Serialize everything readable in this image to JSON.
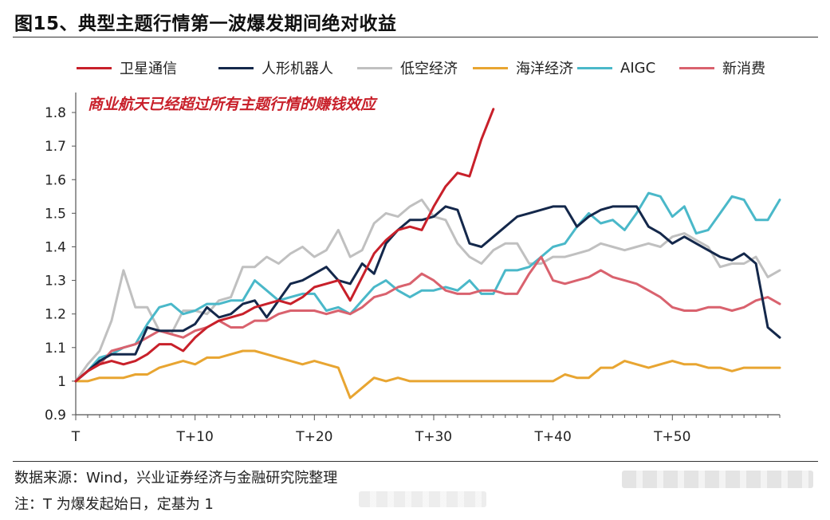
{
  "title": "图15、典型主题行情第一波爆发期间绝对收益",
  "source": "数据来源：Wind，兴业证券经济与金融研究院整理",
  "note": "注：T 为爆发起始日，定基为 1",
  "chart_data": {
    "type": "line",
    "title": "图15、典型主题行情第一波爆发期间绝对收益",
    "annotation": "商业航天已经超过所有主题行情的赚钱效应",
    "annotation_color": "#c8202a",
    "x_ticks": [
      "T",
      "T+10",
      "T+20",
      "T+30",
      "T+40",
      "T+50"
    ],
    "x_tick_positions": [
      0,
      10,
      20,
      30,
      40,
      50
    ],
    "xlim": [
      0,
      59
    ],
    "ylim": [
      0.9,
      1.85
    ],
    "y_ticks": [
      "0.9",
      "1",
      "1.1",
      "1.2",
      "1.3",
      "1.4",
      "1.5",
      "1.6",
      "1.7",
      "1.8"
    ],
    "y_tick_values": [
      0.9,
      1.0,
      1.1,
      1.2,
      1.3,
      1.4,
      1.5,
      1.6,
      1.7,
      1.8
    ],
    "legend_position": "top",
    "grid": false,
    "series": [
      {
        "name": "卫星通信",
        "color": "#c8202a",
        "values": [
          1.0,
          1.03,
          1.05,
          1.06,
          1.05,
          1.06,
          1.08,
          1.11,
          1.11,
          1.09,
          1.13,
          1.16,
          1.18,
          1.19,
          1.2,
          1.22,
          1.23,
          1.24,
          1.23,
          1.25,
          1.28,
          1.29,
          1.3,
          1.24,
          1.31,
          1.38,
          1.42,
          1.45,
          1.46,
          1.45,
          1.52,
          1.58,
          1.62,
          1.61,
          1.72,
          1.81
        ]
      },
      {
        "name": "人形机器人",
        "color": "#14284b",
        "values": [
          1.0,
          1.03,
          1.06,
          1.08,
          1.08,
          1.08,
          1.16,
          1.15,
          1.15,
          1.15,
          1.17,
          1.22,
          1.19,
          1.2,
          1.23,
          1.24,
          1.19,
          1.24,
          1.29,
          1.3,
          1.32,
          1.34,
          1.3,
          1.29,
          1.35,
          1.32,
          1.41,
          1.45,
          1.48,
          1.48,
          1.49,
          1.52,
          1.51,
          1.41,
          1.4,
          1.43,
          1.46,
          1.49,
          1.5,
          1.51,
          1.52,
          1.52,
          1.46,
          1.49,
          1.51,
          1.52,
          1.52,
          1.52,
          1.46,
          1.44,
          1.41,
          1.43,
          1.41,
          1.39,
          1.37,
          1.36,
          1.38,
          1.35,
          1.16,
          1.13
        ]
      },
      {
        "name": "低空经济",
        "color": "#c0c0c0",
        "values": [
          1.0,
          1.05,
          1.09,
          1.18,
          1.33,
          1.22,
          1.22,
          1.15,
          1.14,
          1.21,
          1.21,
          1.2,
          1.24,
          1.25,
          1.34,
          1.34,
          1.37,
          1.35,
          1.38,
          1.4,
          1.37,
          1.39,
          1.45,
          1.37,
          1.39,
          1.47,
          1.5,
          1.49,
          1.52,
          1.54,
          1.49,
          1.48,
          1.41,
          1.37,
          1.35,
          1.39,
          1.41,
          1.41,
          1.35,
          1.35,
          1.37,
          1.37,
          1.38,
          1.39,
          1.41,
          1.4,
          1.39,
          1.4,
          1.41,
          1.4,
          1.43,
          1.44,
          1.42,
          1.4,
          1.34,
          1.35,
          1.35,
          1.37,
          1.31,
          1.33
        ]
      },
      {
        "name": "海洋经济",
        "color": "#e8a531",
        "values": [
          1.0,
          1.0,
          1.01,
          1.01,
          1.01,
          1.02,
          1.02,
          1.04,
          1.05,
          1.06,
          1.05,
          1.07,
          1.07,
          1.08,
          1.09,
          1.09,
          1.08,
          1.07,
          1.06,
          1.05,
          1.06,
          1.05,
          1.04,
          0.95,
          0.98,
          1.01,
          1.0,
          1.01,
          1.0,
          1.0,
          1.0,
          1.0,
          1.0,
          1.0,
          1.0,
          1.0,
          1.0,
          1.0,
          1.0,
          1.0,
          1.0,
          1.02,
          1.01,
          1.01,
          1.04,
          1.04,
          1.06,
          1.05,
          1.04,
          1.05,
          1.06,
          1.05,
          1.05,
          1.04,
          1.04,
          1.03,
          1.04,
          1.04,
          1.04,
          1.04
        ]
      },
      {
        "name": "AIGC",
        "color": "#4ab8c9",
        "values": [
          1.0,
          1.03,
          1.07,
          1.08,
          1.1,
          1.11,
          1.17,
          1.22,
          1.23,
          1.2,
          1.21,
          1.23,
          1.23,
          1.24,
          1.24,
          1.3,
          1.27,
          1.24,
          1.25,
          1.26,
          1.26,
          1.21,
          1.22,
          1.2,
          1.24,
          1.28,
          1.3,
          1.27,
          1.25,
          1.27,
          1.27,
          1.28,
          1.27,
          1.3,
          1.26,
          1.26,
          1.33,
          1.33,
          1.34,
          1.37,
          1.4,
          1.41,
          1.46,
          1.5,
          1.47,
          1.48,
          1.45,
          1.5,
          1.56,
          1.55,
          1.49,
          1.52,
          1.44,
          1.45,
          1.5,
          1.55,
          1.54,
          1.48,
          1.48,
          1.54
        ]
      },
      {
        "name": "新消费",
        "color": "#d9626e",
        "values": [
          1.0,
          1.03,
          1.05,
          1.09,
          1.1,
          1.11,
          1.13,
          1.15,
          1.14,
          1.13,
          1.15,
          1.16,
          1.18,
          1.16,
          1.16,
          1.18,
          1.18,
          1.2,
          1.21,
          1.21,
          1.21,
          1.2,
          1.21,
          1.2,
          1.22,
          1.25,
          1.26,
          1.28,
          1.29,
          1.32,
          1.3,
          1.27,
          1.26,
          1.26,
          1.27,
          1.27,
          1.26,
          1.26,
          1.32,
          1.37,
          1.3,
          1.29,
          1.3,
          1.31,
          1.33,
          1.31,
          1.3,
          1.29,
          1.27,
          1.25,
          1.22,
          1.21,
          1.21,
          1.22,
          1.22,
          1.21,
          1.22,
          1.24,
          1.25,
          1.23
        ]
      }
    ]
  }
}
